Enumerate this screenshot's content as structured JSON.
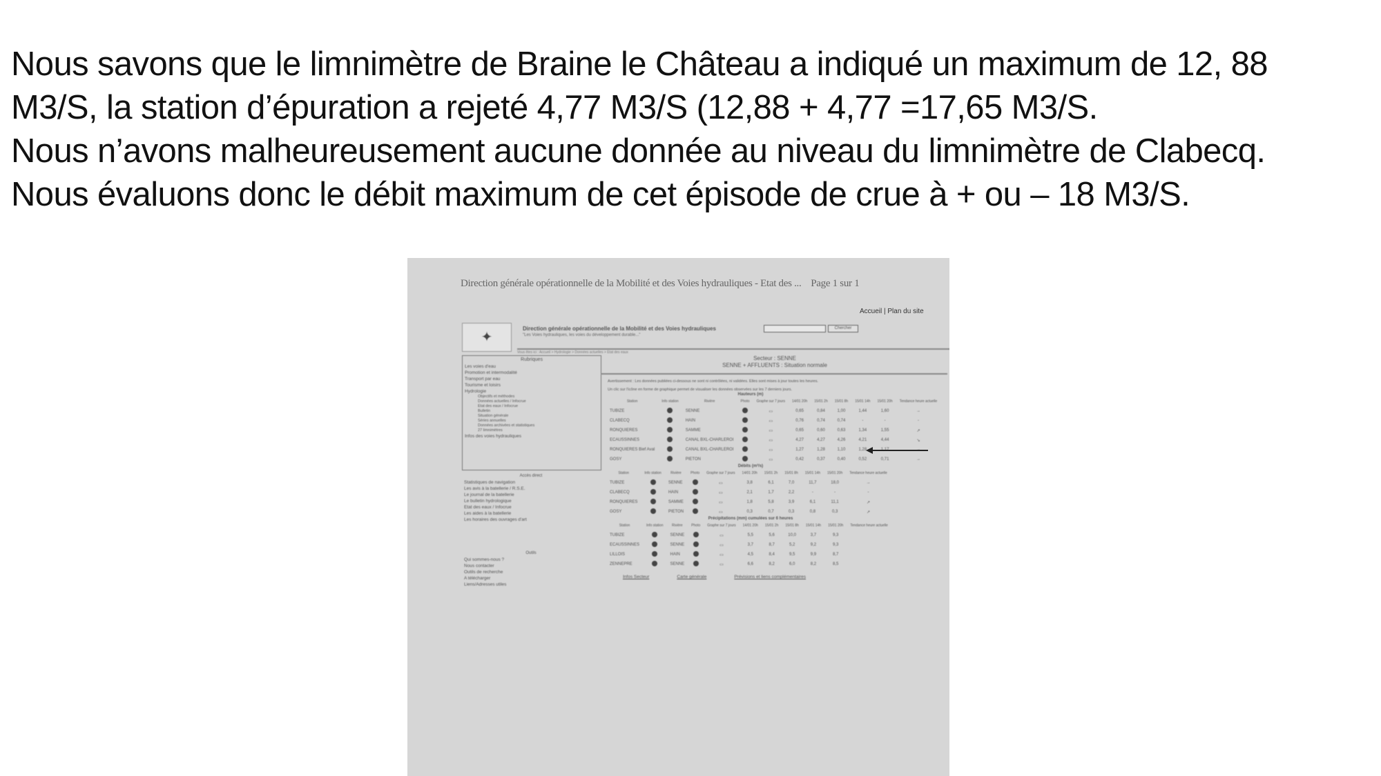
{
  "slide": {
    "lines": [
      "Nous savons que le limnimètre de Braine le Château a indiqué un maximum de 12, 88",
      "M3/S, la station d’épuration a rejeté 4,77 M3/S (12,88 + 4,77 =17,65 M3/S.",
      "Nous n’avons malheureusement aucune donnée au niveau du limnimètre de Clabecq.",
      "Nous évaluons donc le débit maximum de cet épisode de crue à  + ou – 18 M3/S."
    ]
  },
  "scan": {
    "doc_title": "Direction générale opérationnelle de la Mobilité et des Voies hydrauliques - Etat des ...",
    "page": "Page 1 sur 1",
    "banner_title": "Direction générale opérationnelle de la Mobilité et des Voies hydrauliques",
    "banner_sub": "\"Les Voies hydrauliques, les voies du développement durable...\"",
    "top_links": "Accueil | Plan du site",
    "search_button": "Chercher",
    "breadcrumb": "Vous êtes ici : Accueil > Hydrologie > Données actuelles > Etat des eaux",
    "sidebar": {
      "heading": "Rubriques",
      "items": [
        "Les voies d'eau",
        "Promotion et intermodalité",
        "Transport par eau",
        "Tourisme et loisirs",
        "Hydrologie"
      ],
      "subitems": [
        "Objectifs et méthodes",
        "Données actuelles / Infocrue",
        "Etat des eaux / Infocrue",
        "Bulletin",
        "Situation générale",
        "Séries annuelles",
        "Données archivées et statistiques",
        "27 limnimètres"
      ],
      "last": "Infos des voies hydrauliques",
      "heading2": "Accès direct",
      "items2": [
        "Statistiques de navigation",
        "Les avis à la batellerie / R.S.E.",
        "Le journal de la batellerie",
        "Le bulletin hydrologique",
        "Etat des eaux / Infocrue",
        "Les aides à la batellerie",
        "Les horaires des ouvrages d'art"
      ],
      "heading3": "Outils",
      "items3": [
        "Qui sommes-nous ?",
        "Nous contacter",
        "Outils de recherche",
        "A télécharger",
        "Liens/Adresses utiles"
      ]
    },
    "section_title": "Secteur : SENNE",
    "section_sub": "SENNE + AFFLUENTS : Situation normale",
    "warning": "Avertissement : Les données publiées ci-dessous ne sont ni contrôlées, ni validées. Elles sont mises à jour toutes les heures.",
    "graph_note": "Un clic sur l'icône en forme de graphique permet de visualiser les données observées sur les 7 derniers jours.",
    "columns": [
      "Station",
      "Info station",
      "Rivière",
      "Photo",
      "Graphe sur 7 jours",
      "14/01 20h",
      "15/01 2h",
      "15/01 8h",
      "15/01 14h",
      "15/01 20h",
      "Tendance heure actuelle"
    ],
    "tables": [
      {
        "caption": "Hauteurs (m)",
        "rows": [
          [
            "TUBIZE",
            "SENNE",
            "0,65",
            "0,84",
            "1,00",
            "1,44",
            "1,60",
            "→"
          ],
          [
            "CLABECQ",
            "HAIN",
            "0,76",
            "0,74",
            "0,74",
            "-",
            "-",
            "-"
          ],
          [
            "RONQUIERES",
            "SAMME",
            "0,65",
            "0,60",
            "0,63",
            "1,34",
            "1,55",
            "↗"
          ],
          [
            "ECAUSSINNES",
            "CANAL BXL-CHARLEROI",
            "4,27",
            "4,27",
            "4,26",
            "4,21",
            "4,44",
            "↘"
          ],
          [
            "RONQUIERES Bief Aval",
            "CANAL BXL-CHARLEROI",
            "1,27",
            "1,28",
            "1,10",
            "1,28",
            "1,17",
            "→"
          ],
          [
            "GOSY",
            "PIETON",
            "0,42",
            "0,37",
            "0,40",
            "0,52",
            "0,71",
            "→"
          ]
        ]
      },
      {
        "caption": "Débits (m³/s)",
        "rows": [
          [
            "TUBIZE",
            "SENNE",
            "3,8",
            "6,1",
            "7,0",
            "11,7",
            "18,0",
            "→"
          ],
          [
            "CLABECQ",
            "HAIN",
            "2,1",
            "1,7",
            "2,2",
            "-",
            "-",
            "-"
          ],
          [
            "RONQUIERES",
            "SAMME",
            "1,8",
            "5,8",
            "3,9",
            "6,1",
            "11,1",
            "↗"
          ],
          [
            "GOSY",
            "PIETON",
            "0,3",
            "0,7",
            "0,3",
            "0,8",
            "0,3",
            "↗"
          ]
        ]
      },
      {
        "caption": "Précipitations (mm) cumulées sur 6 heures",
        "rows": [
          [
            "TUBIZE",
            "SENNE",
            "5,5",
            "5,6",
            "10,0",
            "3,7",
            "9,3",
            ""
          ],
          [
            "ECAUSSINNES",
            "SENNE",
            "3,7",
            "8,7",
            "5,2",
            "9,2",
            "9,3",
            ""
          ],
          [
            "LILLOIS",
            "HAIN",
            "4,5",
            "8,4",
            "9,5",
            "9,9",
            "8,7",
            ""
          ],
          [
            "ZENNEPRE",
            "SENNE",
            "6,6",
            "8,2",
            "6,0",
            "8,2",
            "8,5",
            ""
          ]
        ]
      }
    ],
    "links": [
      "Infos Secteur",
      "Carte générale",
      "Prévisions et liens complémentaires"
    ]
  }
}
